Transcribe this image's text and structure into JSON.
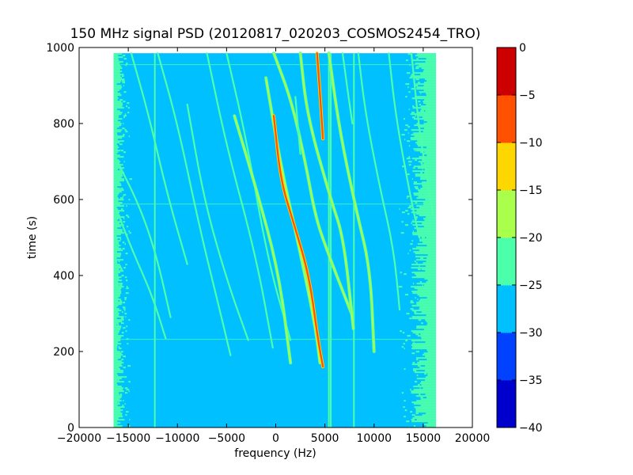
{
  "chart_data": {
    "type": "heatmap",
    "title": "150 MHz signal PSD (20120817_020203_COSMOS2454_TRO)",
    "xlabel": "frequency (Hz)",
    "ylabel": "time (s)",
    "xlim": [
      -20000,
      20000
    ],
    "ylim": [
      0,
      1000
    ],
    "x_ticks": [
      -20000,
      -15000,
      -10000,
      -5000,
      0,
      5000,
      10000,
      15000,
      20000
    ],
    "x_tick_labels": [
      "−20000",
      "−15000",
      "−10000",
      "−5000",
      "0",
      "5000",
      "10000",
      "15000",
      "20000"
    ],
    "y_ticks": [
      0,
      200,
      400,
      600,
      800,
      1000
    ],
    "y_tick_labels": [
      "0",
      "200",
      "400",
      "600",
      "800",
      "1000"
    ],
    "data_extent": {
      "freq": [
        -16500,
        16300
      ],
      "time": [
        0,
        985
      ]
    },
    "background_level": -27.5,
    "edge_noise_level": -22.5,
    "colorbar": {
      "levels": [
        -40,
        -35,
        -30,
        -25,
        -20,
        -15,
        -10,
        -5,
        0
      ],
      "tick_labels": [
        "−40",
        "−35",
        "−30",
        "−25",
        "−20",
        "−15",
        "−10",
        "−5",
        "0"
      ],
      "colors": [
        "#0000cd",
        "#0042ff",
        "#00c0ff",
        "#4cffaa",
        "#aaff4d",
        "#ffd700",
        "#ff5100",
        "#cd0000"
      ]
    },
    "vertical_lines": [
      {
        "freq": -12300,
        "level": -22.5
      },
      {
        "freq": 5600,
        "level": -22.5
      },
      {
        "freq": 5400,
        "level": -22.5
      },
      {
        "freq": 7950,
        "level": -22.5
      }
    ],
    "horizontal_lines": [
      {
        "time": 232,
        "level": -22.5
      },
      {
        "time": 588,
        "level": -22.5
      },
      {
        "time": 955,
        "level": -22.5
      }
    ],
    "traces": [
      {
        "points": [
          [
            -16300,
            580
          ],
          [
            -14500,
            460
          ],
          [
            -12600,
            350
          ],
          [
            -11200,
            235
          ]
        ],
        "level": -22.5
      },
      {
        "points": [
          [
            -16100,
            700
          ],
          [
            -13800,
            580
          ],
          [
            -12100,
            450
          ],
          [
            -10700,
            290
          ]
        ],
        "level": -22.5
      },
      {
        "points": [
          [
            -14700,
            985
          ],
          [
            -12900,
            820
          ],
          [
            -11000,
            610
          ],
          [
            -9000,
            430
          ]
        ],
        "level": -22.5
      },
      {
        "points": [
          [
            -12000,
            985
          ],
          [
            -10000,
            800
          ],
          [
            -7700,
            520
          ],
          [
            -5700,
            310
          ],
          [
            -4600,
            190
          ]
        ],
        "level": -22.5
      },
      {
        "points": [
          [
            -9000,
            850
          ],
          [
            -7300,
            600
          ],
          [
            -5000,
            390
          ],
          [
            -2800,
            230
          ]
        ],
        "level": -22.5
      },
      {
        "points": [
          [
            -7000,
            985
          ],
          [
            -5000,
            740
          ],
          [
            -2000,
            450
          ],
          [
            -300,
            210
          ]
        ],
        "level": -22.5
      },
      {
        "points": [
          [
            -5000,
            985
          ],
          [
            -3000,
            760
          ],
          [
            -800,
            440
          ],
          [
            1500,
            230
          ]
        ],
        "level": -22.5
      },
      {
        "points": [
          [
            -4200,
            820
          ],
          [
            -2000,
            630
          ],
          [
            300,
            410
          ],
          [
            1500,
            170
          ]
        ],
        "level": -17.5
      },
      {
        "points": [
          [
            -1000,
            920
          ],
          [
            500,
            690
          ],
          [
            2500,
            460
          ],
          [
            4000,
            270
          ],
          [
            4500,
            170
          ]
        ],
        "level": -17.5
      },
      {
        "points": [
          [
            -200,
            820
          ],
          [
            500,
            650
          ],
          [
            1800,
            540
          ],
          [
            3400,
            400
          ],
          [
            4300,
            230
          ],
          [
            4800,
            160
          ]
        ],
        "level": -7.5
      },
      {
        "points": [
          [
            4200,
            985
          ],
          [
            4500,
            880
          ],
          [
            4800,
            760
          ]
        ],
        "level": -7.5
      },
      {
        "points": [
          [
            -200,
            985
          ],
          [
            1600,
            860
          ],
          [
            3000,
            700
          ],
          [
            4000,
            560
          ],
          [
            5000,
            480
          ],
          [
            7700,
            300
          ]
        ],
        "level": -17.5
      },
      {
        "points": [
          [
            2500,
            985
          ],
          [
            3200,
            820
          ],
          [
            5600,
            600
          ],
          [
            6900,
            500
          ],
          [
            7900,
            260
          ]
        ],
        "level": -17.5
      },
      {
        "points": [
          [
            5400,
            985
          ],
          [
            6500,
            780
          ],
          [
            8200,
            570
          ],
          [
            9600,
            420
          ],
          [
            10000,
            200
          ]
        ],
        "level": -17.5
      },
      {
        "points": [
          [
            8400,
            985
          ],
          [
            9100,
            830
          ],
          [
            10600,
            630
          ],
          [
            12000,
            470
          ],
          [
            12600,
            310
          ]
        ],
        "level": -22.5
      },
      {
        "points": [
          [
            11500,
            985
          ],
          [
            12200,
            820
          ],
          [
            13600,
            620
          ],
          [
            14600,
            500
          ]
        ],
        "level": -22.5
      },
      {
        "points": [
          [
            13800,
            985
          ],
          [
            14600,
            780
          ],
          [
            15500,
            640
          ],
          [
            16000,
            560
          ]
        ],
        "level": -22.5
      },
      {
        "points": [
          [
            2000,
            870
          ],
          [
            2500,
            720
          ]
        ],
        "level": -22.5
      },
      {
        "points": [
          [
            6800,
            985
          ],
          [
            7400,
            870
          ],
          [
            7800,
            800
          ]
        ],
        "level": -22.5
      }
    ]
  }
}
